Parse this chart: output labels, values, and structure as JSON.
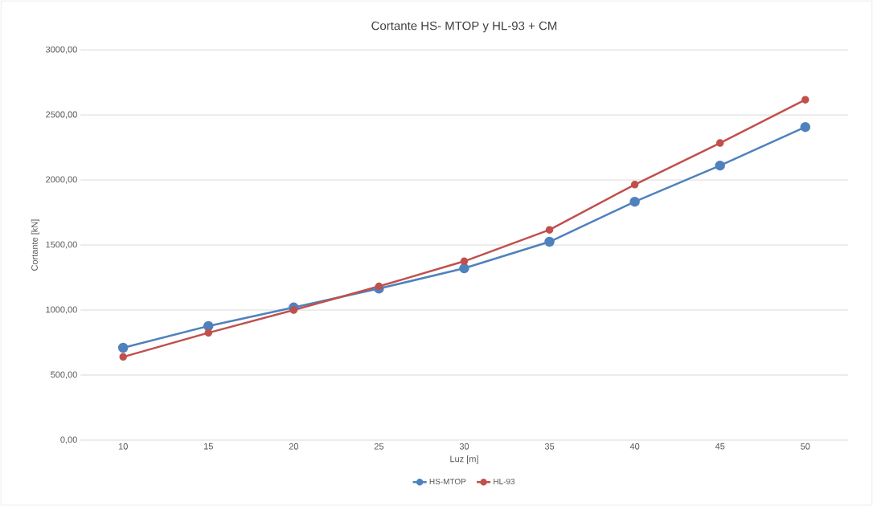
{
  "chart_data": {
    "type": "line",
    "title": "Cortante HS- MTOP y HL-93 + CM",
    "xlabel": "Luz [m]",
    "ylabel": "Cortante [kN]",
    "categories": [
      "10",
      "15",
      "20",
      "25",
      "30",
      "35",
      "40",
      "45",
      "50"
    ],
    "series": [
      {
        "name": "HS-MTOP",
        "color": "#4f81bd",
        "values": [
          710,
          877,
          1020,
          1165,
          1321,
          1525,
          1833,
          2111,
          2407
        ]
      },
      {
        "name": "HL-93",
        "color": "#c0504d",
        "values": [
          640,
          825,
          1000,
          1182,
          1375,
          1617,
          1965,
          2284,
          2617
        ]
      }
    ],
    "ylim": [
      0,
      3000
    ],
    "yticks": [
      {
        "value": 0,
        "label": "0,00"
      },
      {
        "value": 500,
        "label": "500,00"
      },
      {
        "value": 1000,
        "label": "1000,00"
      },
      {
        "value": 1500,
        "label": "1500,00"
      },
      {
        "value": 2000,
        "label": "2000,00"
      },
      {
        "value": 2500,
        "label": "2500,00"
      },
      {
        "value": 3000,
        "label": "3000,00"
      }
    ],
    "grid": "y",
    "legend": "bottom",
    "marker": "circle",
    "line_style": "solid"
  }
}
